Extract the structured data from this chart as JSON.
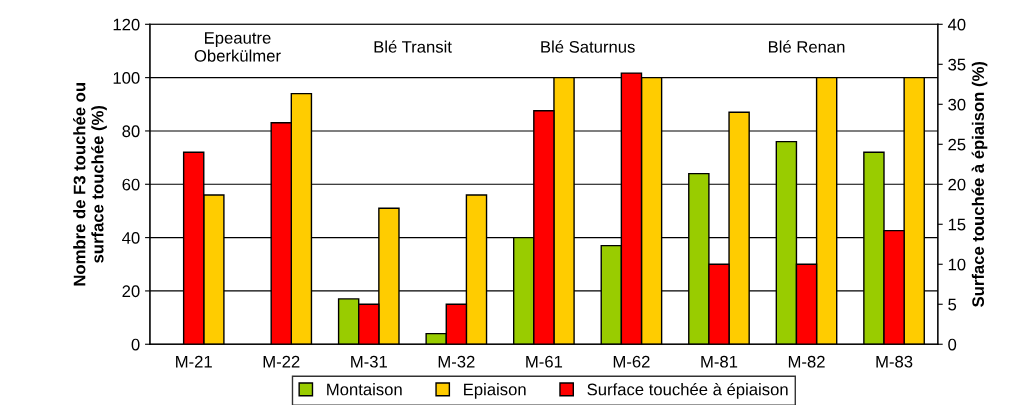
{
  "chart_data": {
    "type": "bar",
    "categories": [
      "M-21",
      "M-22",
      "M-31",
      "M-32",
      "M-61",
      "M-62",
      "M-81",
      "M-82",
      "M-83"
    ],
    "series": [
      {
        "name": "Montaison",
        "color": "#99cc00",
        "values": [
          null,
          null,
          17,
          4,
          40,
          37,
          64,
          76,
          72
        ]
      },
      {
        "name": "Epiaison",
        "color": "#ffcc00",
        "values": [
          56,
          94,
          51,
          56,
          100,
          100,
          87,
          100,
          100
        ]
      },
      {
        "name": "Surface touchée à épiaison",
        "color": "#ff0000",
        "axis": "y2",
        "values": [
          24,
          27.7,
          5,
          5,
          29.2,
          33.9,
          10,
          10,
          14.2
        ]
      }
    ],
    "ylabel": "Nombre de F3 touchée ou\nsurface touchée (%)",
    "y2label": "Surface touchée à épiaison (%)",
    "ylim": [
      0,
      120
    ],
    "yticks": [
      0,
      20,
      40,
      60,
      80,
      100,
      120
    ],
    "y2lim": [
      0,
      40
    ],
    "y2ticks": [
      0,
      5,
      10,
      15,
      20,
      25,
      30,
      35,
      40
    ],
    "annotations": [
      "Epeautre\nOberkülmer",
      "Blé Transit",
      "Blé Saturnus",
      "Blé Renan"
    ],
    "grid": "y",
    "legend": "bottom"
  }
}
